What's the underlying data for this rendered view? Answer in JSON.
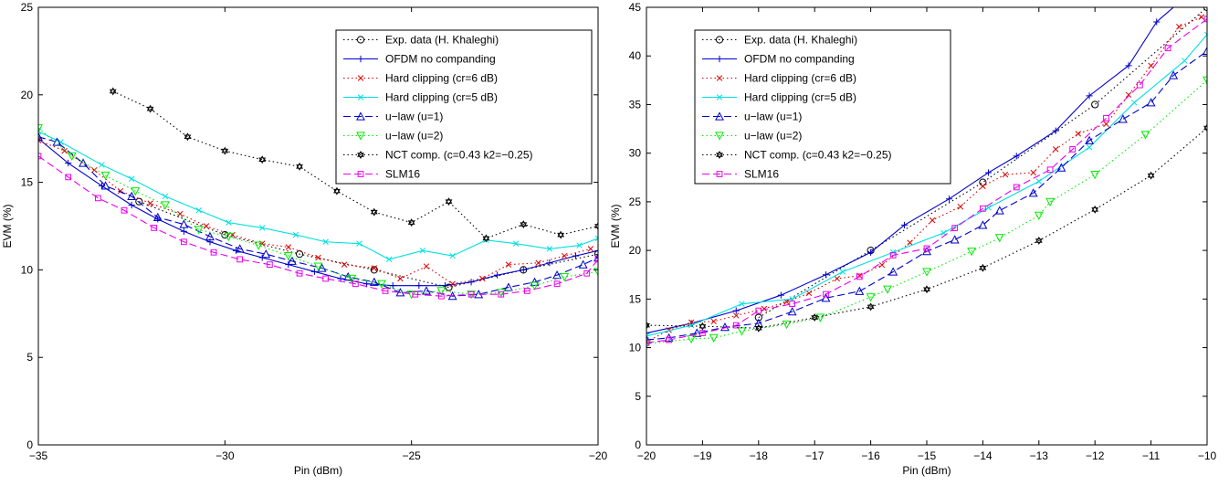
{
  "chart_data": [
    {
      "type": "line",
      "xlabel": "Pin (dBm)",
      "ylabel": "EVM (%)",
      "xlim": [
        -35,
        -20
      ],
      "ylim": [
        0,
        25
      ],
      "xticks": [
        -35,
        -30,
        -25,
        -20
      ],
      "yticks": [
        0,
        5,
        10,
        15,
        20,
        25
      ],
      "grid": false,
      "legend_position": "top-right",
      "series": [
        {
          "name": "Exp. data (H. Khaleghi)",
          "color": "#000000",
          "dash": "dotted",
          "marker": "circle",
          "x": [
            -32.3,
            -30,
            -28,
            -26,
            -24,
            -22,
            -20
          ],
          "y": [
            13.9,
            12,
            10.9,
            10,
            9,
            10,
            10.9
          ]
        },
        {
          "name": "OFDM no companding",
          "color": "#0000cc",
          "dash": "solid",
          "marker": "plus",
          "x": [
            -35,
            -34.2,
            -33.3,
            -32.5,
            -31.8,
            -31.1,
            -30.4,
            -29.7,
            -29,
            -28.3,
            -27.6,
            -26.9,
            -26.2,
            -25.5,
            -24.8,
            -24.1,
            -23.4,
            -22.7,
            -22,
            -21.3,
            -20.6,
            -20
          ],
          "y": [
            17.5,
            16.1,
            14.8,
            13.7,
            12.9,
            12.2,
            11.6,
            11.1,
            10.7,
            10.3,
            9.9,
            9.5,
            9.2,
            9.1,
            9.1,
            9.1,
            9.3,
            9.7,
            10,
            10.4,
            10.8,
            11.1
          ]
        },
        {
          "name": "Hard clipping (cr=6 dB)",
          "color": "#dd0000",
          "dash": "dotted",
          "marker": "x",
          "x": [
            -35,
            -34.3,
            -33.5,
            -32.8,
            -32,
            -31.2,
            -30.5,
            -29.8,
            -29,
            -28.3,
            -27.5,
            -26.8,
            -26,
            -25.3,
            -24.6,
            -23.9,
            -23.1,
            -22.4,
            -21.6,
            -20.9,
            -20.2
          ],
          "y": [
            17.4,
            16.8,
            15.7,
            14.5,
            13.8,
            13.2,
            12.5,
            12,
            11.5,
            11.3,
            10.7,
            10.3,
            10.1,
            9.5,
            10.2,
            9.2,
            9.5,
            10.3,
            10.4,
            10.8,
            11.2
          ]
        },
        {
          "name": "Hard clipping (cr=5 dB)",
          "color": "#00e0e0",
          "dash": "solid",
          "marker": "x",
          "x": [
            -35,
            -34.4,
            -33.3,
            -32.5,
            -31.6,
            -30.7,
            -29.9,
            -29,
            -28.1,
            -27.3,
            -26.4,
            -25.6,
            -24.7,
            -23.9,
            -23,
            -22.2,
            -21.3,
            -20.5,
            -20
          ],
          "y": [
            17.9,
            17.3,
            16,
            15.2,
            14.2,
            13.4,
            12.7,
            12.4,
            12,
            11.6,
            11.5,
            10.6,
            11.1,
            10.8,
            11.7,
            11.5,
            11.2,
            11.4,
            11.8
          ]
        },
        {
          "name": "u−law (u=1)",
          "color": "#0000cc",
          "dash": "dashed",
          "marker": "triangle-up",
          "x": [
            -35,
            -34.5,
            -33.8,
            -33.2,
            -32.5,
            -31.8,
            -31.1,
            -30.4,
            -29.6,
            -28.9,
            -28.2,
            -27.4,
            -26.7,
            -26,
            -25.3,
            -24.6,
            -23.9,
            -23.2,
            -22.4,
            -21.7,
            -21.1,
            -20.4,
            -20
          ],
          "y": [
            17.6,
            17.3,
            16.1,
            14.8,
            14.2,
            13,
            12.6,
            11.9,
            11.2,
            10.9,
            10.5,
            10.1,
            9.6,
            9.3,
            8.7,
            8.8,
            8.5,
            8.6,
            9,
            9.3,
            9.7,
            10.3,
            10.7
          ]
        },
        {
          "name": "u−law (u=2)",
          "color": "#00ee00",
          "dash": "dotted",
          "marker": "triangle-down",
          "x": [
            -35,
            -34.1,
            -33.2,
            -32.4,
            -31.6,
            -30.7,
            -29.9,
            -29.1,
            -28.3,
            -27.5,
            -26.6,
            -25.8,
            -25,
            -24.2,
            -23.4,
            -22.6,
            -21.7,
            -20.9,
            -20
          ],
          "y": [
            18.1,
            16.5,
            15.4,
            14.5,
            13.7,
            12.3,
            11.9,
            11.4,
            10.8,
            10.2,
            9.5,
            9.2,
            8.6,
            8.8,
            8.6,
            8.7,
            9.1,
            9.6,
            9.9
          ]
        },
        {
          "name": "NCT comp. (c=0.43  k2=−0.25)",
          "color": "#000000",
          "dash": "dotted",
          "marker": "hexagram",
          "x": [
            -33,
            -32,
            -31,
            -30,
            -29,
            -28,
            -27,
            -26,
            -25,
            -24,
            -23,
            -22,
            -21,
            -20
          ],
          "y": [
            20.2,
            19.2,
            17.6,
            16.8,
            16.3,
            15.9,
            14.5,
            13.3,
            12.7,
            13.9,
            11.8,
            12.6,
            12,
            12.5
          ]
        },
        {
          "name": "SLM16",
          "color": "#ee00ee",
          "dash": "dashed",
          "marker": "square",
          "x": [
            -35,
            -34.2,
            -33.4,
            -32.7,
            -31.9,
            -31.1,
            -30.3,
            -29.6,
            -28.8,
            -28,
            -27.3,
            -26.5,
            -25.7,
            -24.9,
            -24.2,
            -23.4,
            -22.6,
            -21.9,
            -21.1,
            -20.3,
            -20
          ],
          "y": [
            16.5,
            15.3,
            14.1,
            13.4,
            12.4,
            11.6,
            11,
            10.6,
            10.3,
            9.8,
            9.5,
            9.2,
            8.8,
            8.6,
            8.5,
            8.6,
            8.6,
            8.8,
            9.2,
            9.8,
            10.6
          ]
        }
      ]
    },
    {
      "type": "line",
      "xlabel": "Pin (dBm)",
      "ylabel": "EVM (%)",
      "xlim": [
        -20,
        -10
      ],
      "ylim": [
        0,
        45
      ],
      "xticks": [
        -20,
        -19,
        -18,
        -17,
        -16,
        -15,
        -14,
        -13,
        -12,
        -11,
        -10
      ],
      "yticks": [
        0,
        5,
        10,
        15,
        20,
        25,
        30,
        35,
        40,
        45
      ],
      "grid": false,
      "legend_position": "top-left",
      "series": [
        {
          "name": "Exp. data (H. Khaleghi)",
          "color": "#000000",
          "dash": "dotted",
          "marker": "circle",
          "x": [
            -18,
            -16,
            -14,
            -12,
            -10
          ],
          "y": [
            13.1,
            20,
            27,
            35,
            45
          ]
        },
        {
          "name": "OFDM no companding",
          "color": "#0000cc",
          "dash": "solid",
          "marker": "plus",
          "x": [
            -20,
            -19.2,
            -18.4,
            -17.6,
            -16.8,
            -16,
            -15.4,
            -14.6,
            -13.9,
            -13.4,
            -12.7,
            -12.1,
            -11.4,
            -10.9,
            -10.4,
            -10
          ],
          "y": [
            11.5,
            12.5,
            13.8,
            15.4,
            17.5,
            19.8,
            22.6,
            25.3,
            28,
            29.7,
            32.3,
            35.9,
            39,
            43.5,
            46,
            47
          ]
        },
        {
          "name": "Hard clipping (cr=6 dB)",
          "color": "#dd0000",
          "dash": "dotted",
          "marker": "x",
          "x": [
            -20,
            -19.6,
            -19.2,
            -18.8,
            -18.4,
            -17.9,
            -17.5,
            -17.1,
            -16.6,
            -16.2,
            -15.8,
            -15.3,
            -14.9,
            -14.4,
            -14,
            -13.6,
            -13.1,
            -12.7,
            -12.3,
            -11.8,
            -11.4,
            -11,
            -10.5,
            -10.1
          ],
          "y": [
            10.6,
            11.8,
            12.6,
            12.7,
            13.3,
            14,
            14.7,
            15.6,
            17.1,
            17.4,
            18.5,
            20.8,
            23.1,
            24.5,
            26.6,
            27.8,
            28,
            30.4,
            32,
            33,
            36,
            39,
            43,
            44
          ]
        },
        {
          "name": "Hard clipping (cr=5 dB)",
          "color": "#00e0e0",
          "dash": "solid",
          "marker": "x",
          "x": [
            -20,
            -19.2,
            -18.3,
            -17.4,
            -16.5,
            -15.6,
            -14.7,
            -13.9,
            -13,
            -12.1,
            -11.3,
            -10.4,
            -10
          ],
          "y": [
            11.2,
            12.3,
            14.5,
            15,
            17.8,
            19.8,
            21.8,
            24.4,
            27.1,
            30.6,
            35.2,
            39.5,
            42.2
          ]
        },
        {
          "name": "u−law (u=1)",
          "color": "#0000cc",
          "dash": "dashed",
          "marker": "triangle-up",
          "x": [
            -20,
            -19.6,
            -19.1,
            -18.6,
            -18,
            -17.4,
            -16.8,
            -16.2,
            -15.6,
            -15,
            -14.5,
            -14,
            -13.7,
            -13.1,
            -12.6,
            -12.1,
            -11.5,
            -11,
            -10.6,
            -10
          ],
          "y": [
            10.8,
            11,
            11.5,
            12.1,
            12.5,
            13.7,
            15.1,
            15.8,
            17.8,
            19.9,
            21.1,
            22.6,
            24.1,
            25.9,
            28.5,
            31.3,
            33.5,
            35.2,
            38,
            40.5
          ]
        },
        {
          "name": "u−law (u=2)",
          "color": "#00ee00",
          "dash": "dotted",
          "marker": "triangle-down",
          "x": [
            -20,
            -19.2,
            -18.8,
            -18.3,
            -17.5,
            -16.9,
            -16,
            -15.7,
            -15,
            -14.2,
            -13.7,
            -13,
            -12.8,
            -12,
            -11.1,
            -10
          ],
          "y": [
            10.4,
            10.9,
            11,
            11.7,
            12.4,
            13.1,
            15.2,
            16,
            17.8,
            19.9,
            21.3,
            23.6,
            25,
            27.8,
            31.9,
            37.5
          ]
        },
        {
          "name": "NCT comp. (c=0.43  k2=−0.25)",
          "color": "#000000",
          "dash": "dotted",
          "marker": "hexagram",
          "x": [
            -20,
            -19,
            -18,
            -17,
            -16,
            -15,
            -14,
            -13,
            -12,
            -11,
            -10
          ],
          "y": [
            12.3,
            12.2,
            12,
            13.1,
            14.2,
            16,
            18.2,
            21,
            24.2,
            27.7,
            32.6
          ]
        },
        {
          "name": "SLM16",
          "color": "#ee00ee",
          "dash": "dashed",
          "marker": "square",
          "x": [
            -20,
            -19.6,
            -19,
            -18.4,
            -18,
            -17.4,
            -16.8,
            -16.2,
            -15.6,
            -15,
            -14.5,
            -14,
            -13.4,
            -12.8,
            -12.4,
            -11.8,
            -11.2,
            -10.7,
            -10
          ],
          "y": [
            10.5,
            10.8,
            11.5,
            12.3,
            13.8,
            14.5,
            15.5,
            17.3,
            19.5,
            20.2,
            22.3,
            24.3,
            26.5,
            28.3,
            30.4,
            33.6,
            37,
            40.8,
            43.8
          ]
        }
      ]
    }
  ]
}
